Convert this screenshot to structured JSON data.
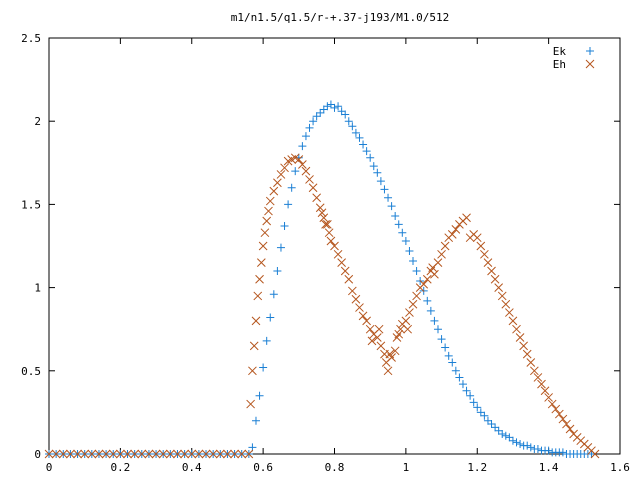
{
  "chart_data": {
    "type": "scatter",
    "title": "m1/n1.5/q1.5/r-+.37-j193/M1.0/512",
    "xlabel": "",
    "ylabel": "",
    "xlim": [
      0,
      1.6
    ],
    "ylim": [
      0,
      2.5
    ],
    "x_ticks": [
      "0",
      "0.2",
      "0.4",
      "0.6",
      "0.8",
      "1",
      "1.2",
      "1.4",
      "1.6"
    ],
    "y_ticks": [
      "0",
      "0.5",
      "1",
      "1.5",
      "2",
      "2.5"
    ],
    "grid": false,
    "legend_position": "top-right",
    "series": [
      {
        "name": "Ek",
        "marker": "plus",
        "color": "#1a7fd4",
        "points": [
          [
            0.0,
            0.0
          ],
          [
            0.02,
            0.0
          ],
          [
            0.04,
            0.0
          ],
          [
            0.06,
            0.0
          ],
          [
            0.08,
            0.0
          ],
          [
            0.1,
            0.0
          ],
          [
            0.12,
            0.0
          ],
          [
            0.14,
            0.0
          ],
          [
            0.16,
            0.0
          ],
          [
            0.18,
            0.0
          ],
          [
            0.2,
            0.0
          ],
          [
            0.22,
            0.0
          ],
          [
            0.24,
            0.0
          ],
          [
            0.26,
            0.0
          ],
          [
            0.28,
            0.0
          ],
          [
            0.3,
            0.0
          ],
          [
            0.32,
            0.0
          ],
          [
            0.34,
            0.0
          ],
          [
            0.36,
            0.0
          ],
          [
            0.38,
            0.0
          ],
          [
            0.4,
            0.0
          ],
          [
            0.42,
            0.0
          ],
          [
            0.44,
            0.0
          ],
          [
            0.46,
            0.0
          ],
          [
            0.48,
            0.0
          ],
          [
            0.5,
            0.0
          ],
          [
            0.52,
            0.0
          ],
          [
            0.54,
            0.0
          ],
          [
            0.56,
            0.0
          ],
          [
            0.57,
            0.04
          ],
          [
            0.58,
            0.2
          ],
          [
            0.59,
            0.35
          ],
          [
            0.6,
            0.52
          ],
          [
            0.61,
            0.68
          ],
          [
            0.62,
            0.82
          ],
          [
            0.63,
            0.96
          ],
          [
            0.64,
            1.1
          ],
          [
            0.65,
            1.24
          ],
          [
            0.66,
            1.37
          ],
          [
            0.67,
            1.5
          ],
          [
            0.68,
            1.6
          ],
          [
            0.69,
            1.7
          ],
          [
            0.7,
            1.78
          ],
          [
            0.71,
            1.85
          ],
          [
            0.72,
            1.91
          ],
          [
            0.73,
            1.96
          ],
          [
            0.74,
            2.0
          ],
          [
            0.75,
            2.03
          ],
          [
            0.76,
            2.05
          ],
          [
            0.77,
            2.07
          ],
          [
            0.78,
            2.09
          ],
          [
            0.79,
            2.1
          ],
          [
            0.8,
            2.08
          ],
          [
            0.81,
            2.09
          ],
          [
            0.82,
            2.06
          ],
          [
            0.83,
            2.04
          ],
          [
            0.84,
            2.0
          ],
          [
            0.85,
            1.97
          ],
          [
            0.86,
            1.93
          ],
          [
            0.87,
            1.9
          ],
          [
            0.88,
            1.86
          ],
          [
            0.89,
            1.82
          ],
          [
            0.9,
            1.78
          ],
          [
            0.91,
            1.73
          ],
          [
            0.92,
            1.69
          ],
          [
            0.93,
            1.64
          ],
          [
            0.94,
            1.59
          ],
          [
            0.95,
            1.54
          ],
          [
            0.96,
            1.49
          ],
          [
            0.97,
            1.43
          ],
          [
            0.98,
            1.38
          ],
          [
            0.99,
            1.33
          ],
          [
            1.0,
            1.28
          ],
          [
            1.01,
            1.22
          ],
          [
            1.02,
            1.16
          ],
          [
            1.03,
            1.1
          ],
          [
            1.04,
            1.04
          ],
          [
            1.05,
            0.98
          ],
          [
            1.06,
            0.92
          ],
          [
            1.07,
            0.86
          ],
          [
            1.08,
            0.8
          ],
          [
            1.09,
            0.75
          ],
          [
            1.1,
            0.69
          ],
          [
            1.11,
            0.64
          ],
          [
            1.12,
            0.59
          ],
          [
            1.13,
            0.55
          ],
          [
            1.14,
            0.5
          ],
          [
            1.15,
            0.46
          ],
          [
            1.16,
            0.42
          ],
          [
            1.17,
            0.38
          ],
          [
            1.18,
            0.35
          ],
          [
            1.19,
            0.31
          ],
          [
            1.2,
            0.28
          ],
          [
            1.21,
            0.25
          ],
          [
            1.22,
            0.23
          ],
          [
            1.23,
            0.2
          ],
          [
            1.24,
            0.18
          ],
          [
            1.25,
            0.16
          ],
          [
            1.26,
            0.14
          ],
          [
            1.27,
            0.12
          ],
          [
            1.28,
            0.11
          ],
          [
            1.29,
            0.1
          ],
          [
            1.3,
            0.08
          ],
          [
            1.31,
            0.07
          ],
          [
            1.32,
            0.06
          ],
          [
            1.33,
            0.05
          ],
          [
            1.34,
            0.05
          ],
          [
            1.35,
            0.04
          ],
          [
            1.36,
            0.03
          ],
          [
            1.37,
            0.03
          ],
          [
            1.38,
            0.02
          ],
          [
            1.39,
            0.02
          ],
          [
            1.4,
            0.02
          ],
          [
            1.41,
            0.01
          ],
          [
            1.42,
            0.01
          ],
          [
            1.43,
            0.01
          ],
          [
            1.44,
            0.01
          ],
          [
            1.45,
            0.0
          ],
          [
            1.46,
            0.0
          ],
          [
            1.47,
            0.0
          ],
          [
            1.48,
            0.0
          ],
          [
            1.49,
            0.0
          ],
          [
            1.5,
            0.0
          ],
          [
            1.51,
            0.0
          ],
          [
            1.52,
            0.0
          ]
        ]
      },
      {
        "name": "Eh",
        "marker": "cross",
        "color": "#b5561e",
        "points": [
          [
            0.0,
            0.0
          ],
          [
            0.02,
            0.0
          ],
          [
            0.04,
            0.0
          ],
          [
            0.06,
            0.0
          ],
          [
            0.08,
            0.0
          ],
          [
            0.1,
            0.0
          ],
          [
            0.12,
            0.0
          ],
          [
            0.14,
            0.0
          ],
          [
            0.16,
            0.0
          ],
          [
            0.18,
            0.0
          ],
          [
            0.2,
            0.0
          ],
          [
            0.22,
            0.0
          ],
          [
            0.24,
            0.0
          ],
          [
            0.26,
            0.0
          ],
          [
            0.28,
            0.0
          ],
          [
            0.3,
            0.0
          ],
          [
            0.32,
            0.0
          ],
          [
            0.34,
            0.0
          ],
          [
            0.36,
            0.0
          ],
          [
            0.38,
            0.0
          ],
          [
            0.4,
            0.0
          ],
          [
            0.42,
            0.0
          ],
          [
            0.44,
            0.0
          ],
          [
            0.46,
            0.0
          ],
          [
            0.48,
            0.0
          ],
          [
            0.5,
            0.0
          ],
          [
            0.52,
            0.0
          ],
          [
            0.54,
            0.0
          ],
          [
            0.56,
            0.0
          ],
          [
            0.565,
            0.3
          ],
          [
            0.57,
            0.5
          ],
          [
            0.575,
            0.65
          ],
          [
            0.58,
            0.8
          ],
          [
            0.585,
            0.95
          ],
          [
            0.59,
            1.05
          ],
          [
            0.595,
            1.15
          ],
          [
            0.6,
            1.25
          ],
          [
            0.605,
            1.33
          ],
          [
            0.61,
            1.4
          ],
          [
            0.615,
            1.46
          ],
          [
            0.62,
            1.52
          ],
          [
            0.63,
            1.58
          ],
          [
            0.64,
            1.63
          ],
          [
            0.65,
            1.68
          ],
          [
            0.66,
            1.72
          ],
          [
            0.67,
            1.76
          ],
          [
            0.68,
            1.77
          ],
          [
            0.69,
            1.78
          ],
          [
            0.7,
            1.77
          ],
          [
            0.71,
            1.74
          ],
          [
            0.72,
            1.7
          ],
          [
            0.73,
            1.65
          ],
          [
            0.74,
            1.6
          ],
          [
            0.75,
            1.54
          ],
          [
            0.76,
            1.48
          ],
          [
            0.765,
            1.45
          ],
          [
            0.77,
            1.42
          ],
          [
            0.775,
            1.38
          ],
          [
            0.78,
            1.38
          ],
          [
            0.785,
            1.33
          ],
          [
            0.79,
            1.28
          ],
          [
            0.8,
            1.25
          ],
          [
            0.81,
            1.2
          ],
          [
            0.82,
            1.15
          ],
          [
            0.83,
            1.1
          ],
          [
            0.84,
            1.05
          ],
          [
            0.85,
            0.98
          ],
          [
            0.86,
            0.93
          ],
          [
            0.87,
            0.88
          ],
          [
            0.88,
            0.83
          ],
          [
            0.89,
            0.8
          ],
          [
            0.9,
            0.75
          ],
          [
            0.905,
            0.68
          ],
          [
            0.91,
            0.72
          ],
          [
            0.92,
            0.7
          ],
          [
            0.925,
            0.75
          ],
          [
            0.93,
            0.65
          ],
          [
            0.94,
            0.6
          ],
          [
            0.945,
            0.55
          ],
          [
            0.95,
            0.5
          ],
          [
            0.955,
            0.6
          ],
          [
            0.96,
            0.58
          ],
          [
            0.97,
            0.62
          ],
          [
            0.975,
            0.7
          ],
          [
            0.98,
            0.72
          ],
          [
            0.985,
            0.75
          ],
          [
            0.99,
            0.78
          ],
          [
            1.0,
            0.8
          ],
          [
            1.005,
            0.75
          ],
          [
            1.01,
            0.85
          ],
          [
            1.02,
            0.9
          ],
          [
            1.03,
            0.95
          ],
          [
            1.04,
            1.0
          ],
          [
            1.05,
            1.02
          ],
          [
            1.06,
            1.05
          ],
          [
            1.07,
            1.1
          ],
          [
            1.075,
            1.12
          ],
          [
            1.08,
            1.08
          ],
          [
            1.09,
            1.15
          ],
          [
            1.1,
            1.2
          ],
          [
            1.11,
            1.25
          ],
          [
            1.12,
            1.3
          ],
          [
            1.13,
            1.32
          ],
          [
            1.14,
            1.35
          ],
          [
            1.15,
            1.38
          ],
          [
            1.16,
            1.4
          ],
          [
            1.17,
            1.42
          ],
          [
            1.18,
            1.3
          ],
          [
            1.19,
            1.32
          ],
          [
            1.2,
            1.3
          ],
          [
            1.21,
            1.25
          ],
          [
            1.22,
            1.2
          ],
          [
            1.23,
            1.15
          ],
          [
            1.24,
            1.1
          ],
          [
            1.25,
            1.05
          ],
          [
            1.26,
            1.0
          ],
          [
            1.27,
            0.95
          ],
          [
            1.28,
            0.9
          ],
          [
            1.29,
            0.85
          ],
          [
            1.3,
            0.8
          ],
          [
            1.31,
            0.75
          ],
          [
            1.32,
            0.7
          ],
          [
            1.33,
            0.65
          ],
          [
            1.34,
            0.6
          ],
          [
            1.35,
            0.55
          ],
          [
            1.36,
            0.5
          ],
          [
            1.37,
            0.46
          ],
          [
            1.38,
            0.42
          ],
          [
            1.39,
            0.38
          ],
          [
            1.4,
            0.34
          ],
          [
            1.41,
            0.3
          ],
          [
            1.42,
            0.27
          ],
          [
            1.43,
            0.24
          ],
          [
            1.44,
            0.21
          ],
          [
            1.45,
            0.18
          ],
          [
            1.46,
            0.15
          ],
          [
            1.47,
            0.12
          ],
          [
            1.48,
            0.1
          ],
          [
            1.49,
            0.08
          ],
          [
            1.5,
            0.06
          ],
          [
            1.51,
            0.04
          ],
          [
            1.52,
            0.02
          ],
          [
            1.53,
            0.0
          ]
        ]
      }
    ]
  }
}
